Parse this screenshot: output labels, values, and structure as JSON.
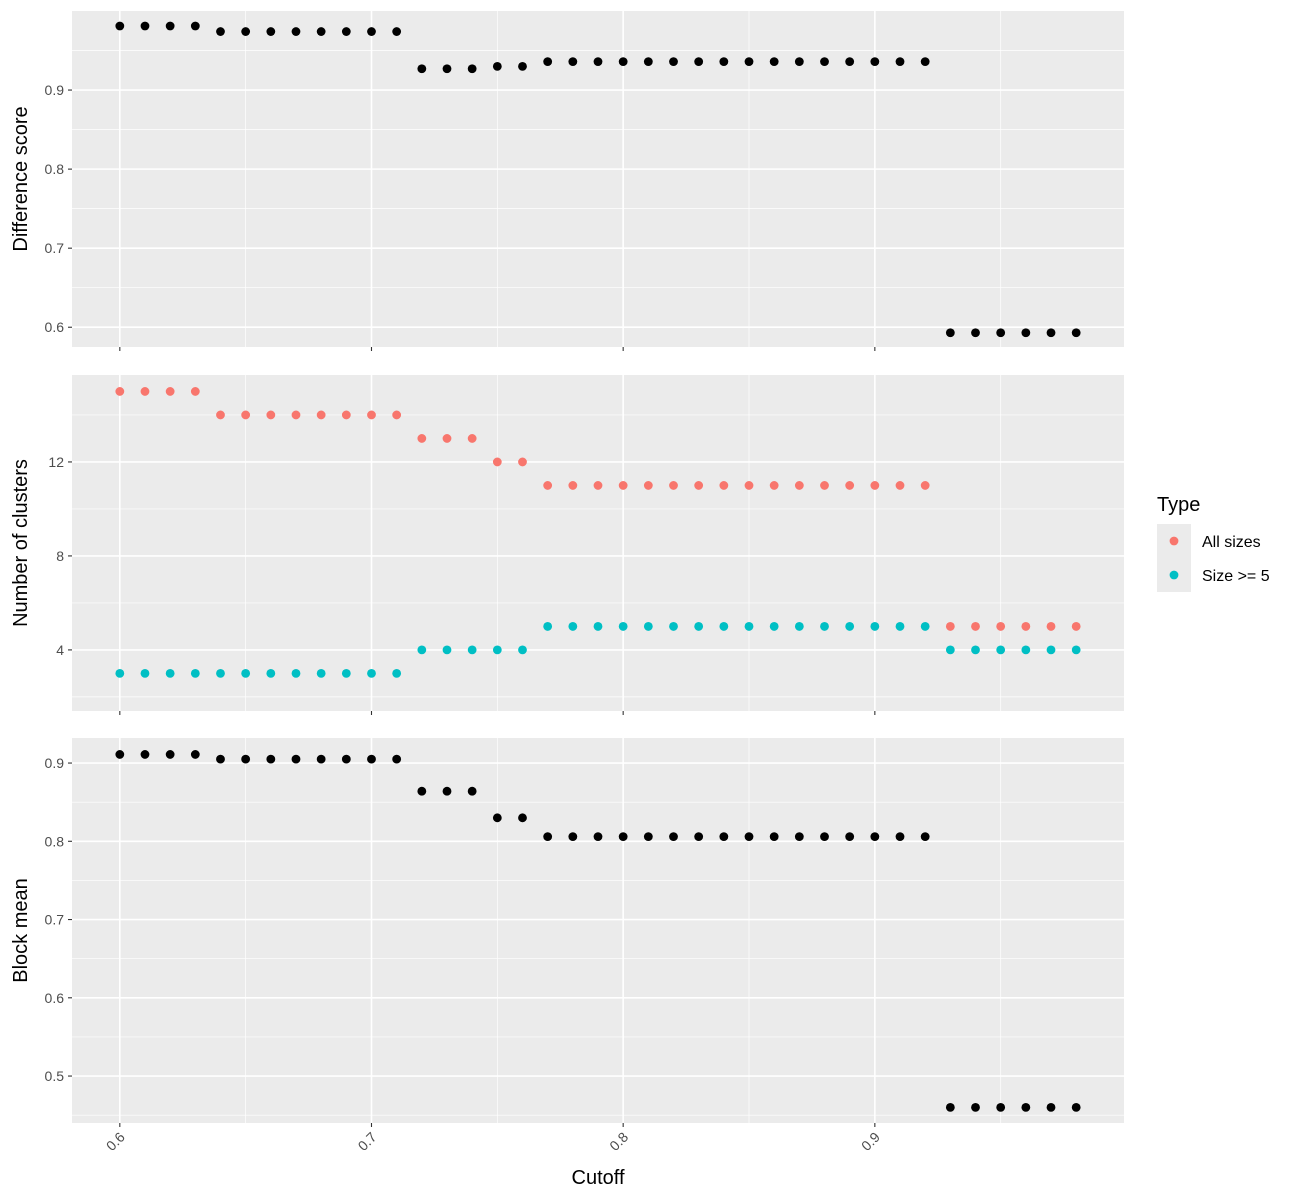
{
  "chart_data": [
    {
      "type": "scatter",
      "ylabel": "Difference score",
      "ylim": [
        0.575,
        1.0
      ],
      "y_ticks": [
        0.6,
        0.7,
        0.8,
        0.9
      ],
      "y_tick_labels": [
        "0.6",
        "0.7",
        "0.8",
        "0.9"
      ],
      "series": [
        {
          "color": "#000000",
          "x": [
            0.6,
            0.61,
            0.62,
            0.63,
            0.64,
            0.65,
            0.66,
            0.67,
            0.68,
            0.69,
            0.7,
            0.71,
            0.72,
            0.73,
            0.74,
            0.75,
            0.76,
            0.77,
            0.78,
            0.79,
            0.8,
            0.81,
            0.82,
            0.83,
            0.84,
            0.85,
            0.86,
            0.87,
            0.88,
            0.89,
            0.9,
            0.91,
            0.92,
            0.93,
            0.94,
            0.95,
            0.96,
            0.97,
            0.98
          ],
          "values": [
            0.981,
            0.981,
            0.981,
            0.981,
            0.974,
            0.974,
            0.974,
            0.974,
            0.974,
            0.974,
            0.974,
            0.974,
            0.927,
            0.927,
            0.927,
            0.93,
            0.93,
            0.936,
            0.936,
            0.936,
            0.936,
            0.936,
            0.936,
            0.936,
            0.936,
            0.936,
            0.936,
            0.936,
            0.936,
            0.936,
            0.936,
            0.936,
            0.936,
            0.593,
            0.593,
            0.593,
            0.593,
            0.593,
            0.593
          ]
        }
      ],
      "grid": true
    },
    {
      "type": "scatter",
      "ylabel": "Number of clusters",
      "ylim": [
        1.4,
        15.7
      ],
      "y_ticks": [
        4,
        8,
        12
      ],
      "y_tick_labels": [
        "4",
        "8",
        "12"
      ],
      "series": [
        {
          "name": "All sizes",
          "color": "#f8766d",
          "x": [
            0.6,
            0.61,
            0.62,
            0.63,
            0.64,
            0.65,
            0.66,
            0.67,
            0.68,
            0.69,
            0.7,
            0.71,
            0.72,
            0.73,
            0.74,
            0.75,
            0.76,
            0.77,
            0.78,
            0.79,
            0.8,
            0.81,
            0.82,
            0.83,
            0.84,
            0.85,
            0.86,
            0.87,
            0.88,
            0.89,
            0.9,
            0.91,
            0.92,
            0.93,
            0.94,
            0.95,
            0.96,
            0.97,
            0.98
          ],
          "values": [
            15,
            15,
            15,
            15,
            14,
            14,
            14,
            14,
            14,
            14,
            14,
            14,
            13,
            13,
            13,
            12,
            12,
            11,
            11,
            11,
            11,
            11,
            11,
            11,
            11,
            11,
            11,
            11,
            11,
            11,
            11,
            11,
            11,
            5,
            5,
            5,
            5,
            5,
            5
          ]
        },
        {
          "name": "Size >= 5",
          "color": "#00bfc4",
          "x": [
            0.6,
            0.61,
            0.62,
            0.63,
            0.64,
            0.65,
            0.66,
            0.67,
            0.68,
            0.69,
            0.7,
            0.71,
            0.72,
            0.73,
            0.74,
            0.75,
            0.76,
            0.77,
            0.78,
            0.79,
            0.8,
            0.81,
            0.82,
            0.83,
            0.84,
            0.85,
            0.86,
            0.87,
            0.88,
            0.89,
            0.9,
            0.91,
            0.92,
            0.93,
            0.94,
            0.95,
            0.96,
            0.97,
            0.98
          ],
          "values": [
            3,
            3,
            3,
            3,
            3,
            3,
            3,
            3,
            3,
            3,
            3,
            3,
            4,
            4,
            4,
            4,
            4,
            5,
            5,
            5,
            5,
            5,
            5,
            5,
            5,
            5,
            5,
            5,
            5,
            5,
            5,
            5,
            5,
            4,
            4,
            4,
            4,
            4,
            4
          ]
        }
      ],
      "legend": {
        "title": "Type",
        "position": "right",
        "entries": [
          "All sizes",
          "Size >= 5"
        ]
      },
      "grid": true
    },
    {
      "type": "scatter",
      "ylabel": "Block mean",
      "ylim": [
        0.44,
        0.932
      ],
      "y_ticks": [
        0.5,
        0.6,
        0.7,
        0.8,
        0.9
      ],
      "y_tick_labels": [
        "0.5",
        "0.6",
        "0.7",
        "0.8",
        "0.9"
      ],
      "series": [
        {
          "color": "#000000",
          "x": [
            0.6,
            0.61,
            0.62,
            0.63,
            0.64,
            0.65,
            0.66,
            0.67,
            0.68,
            0.69,
            0.7,
            0.71,
            0.72,
            0.73,
            0.74,
            0.75,
            0.76,
            0.77,
            0.78,
            0.79,
            0.8,
            0.81,
            0.82,
            0.83,
            0.84,
            0.85,
            0.86,
            0.87,
            0.88,
            0.89,
            0.9,
            0.91,
            0.92,
            0.93,
            0.94,
            0.95,
            0.96,
            0.97,
            0.98
          ],
          "values": [
            0.911,
            0.911,
            0.911,
            0.911,
            0.905,
            0.905,
            0.905,
            0.905,
            0.905,
            0.905,
            0.905,
            0.905,
            0.864,
            0.864,
            0.864,
            0.83,
            0.83,
            0.806,
            0.806,
            0.806,
            0.806,
            0.806,
            0.806,
            0.806,
            0.806,
            0.806,
            0.806,
            0.806,
            0.806,
            0.806,
            0.806,
            0.806,
            0.806,
            0.46,
            0.46,
            0.46,
            0.46,
            0.46,
            0.46
          ]
        }
      ],
      "grid": true
    }
  ],
  "x_axis": {
    "label": "Cutoff",
    "xlim": [
      0.581,
      0.999
    ],
    "ticks": [
      0.6,
      0.7,
      0.8,
      0.9
    ],
    "tick_labels": [
      "0.6",
      "0.7",
      "0.8",
      "0.9"
    ]
  }
}
